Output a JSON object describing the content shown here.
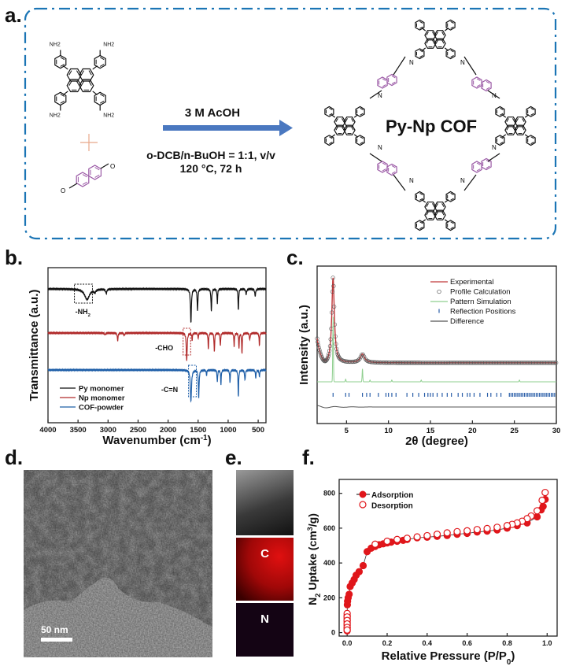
{
  "panels": {
    "a": "a.",
    "b": "b.",
    "c": "c.",
    "d": "d.",
    "e": "e.",
    "f": "f."
  },
  "scheme": {
    "reagent_label": "NH2",
    "conditions": {
      "catalyst": "3 M   AcOH",
      "solvent": "o-DCB/n-BuOH = 1:1, v/v",
      "temperature_time": "120 °C, 72 h"
    },
    "product": "Py-Np COF",
    "imine_label": "N",
    "colors": {
      "frame": "#1b75b5",
      "arrow": "#4a78c0",
      "naphthalene": "#9b5aa6",
      "plus": "#e8a88a",
      "bond": "#111111"
    }
  },
  "chart_data": [
    {
      "id": "ftir",
      "type": "line",
      "xlabel": "Wavenumber (cm",
      "xlabel_sup": "-1",
      "xlabel_end": ")",
      "ylabel": "Transmittance (a.u.)",
      "xlim": [
        4000,
        370
      ],
      "x_reversed": true,
      "xticks": [
        4000,
        3500,
        3000,
        2500,
        2000,
        1500,
        1000,
        500
      ],
      "series": [
        {
          "name": "Py monomer",
          "color": "#111111",
          "peaks": [
            [
              3350,
              0.3,
              80
            ],
            [
              3220,
              0.08,
              30
            ],
            [
              3030,
              0.12,
              20
            ],
            [
              1620,
              0.95,
              15
            ],
            [
              1510,
              0.62,
              12
            ],
            [
              1280,
              0.62,
              12
            ],
            [
              1180,
              0.42,
              10
            ],
            [
              830,
              0.62,
              10
            ],
            [
              700,
              0.15,
              15
            ],
            [
              550,
              0.2,
              15
            ]
          ]
        },
        {
          "name": "Np monomer",
          "color": "#b02a2a",
          "peaks": [
            [
              3050,
              0.05,
              15
            ],
            [
              2840,
              0.22,
              12
            ],
            [
              2730,
              0.08,
              12
            ],
            [
              1690,
              0.8,
              14
            ],
            [
              1600,
              0.2,
              10
            ],
            [
              1500,
              0.15,
              10
            ],
            [
              1330,
              0.45,
              10
            ],
            [
              1230,
              0.55,
              10
            ],
            [
              1130,
              0.38,
              10
            ],
            [
              900,
              0.38,
              10
            ],
            [
              820,
              0.42,
              10
            ],
            [
              770,
              0.58,
              10
            ],
            [
              640,
              0.2,
              12
            ],
            [
              480,
              0.35,
              10
            ]
          ]
        },
        {
          "name": "COF-powder",
          "color": "#1f5fa8",
          "peaks": [
            [
              1620,
              0.9,
              18
            ],
            [
              1490,
              0.8,
              12
            ],
            [
              1360,
              0.15,
              10
            ],
            [
              1180,
              0.35,
              10
            ],
            [
              1120,
              0.4,
              10
            ],
            [
              970,
              0.35,
              10
            ],
            [
              830,
              0.75,
              10
            ],
            [
              720,
              0.3,
              12
            ],
            [
              540,
              0.22,
              12
            ],
            [
              480,
              0.2,
              10
            ]
          ]
        }
      ],
      "annotations": [
        {
          "text": "-NH",
          "sub": "2",
          "range": [
            3560,
            3260
          ],
          "series": "Py monomer"
        },
        {
          "text": "-CHO",
          "range": [
            1750,
            1625
          ],
          "series": "Np monomer"
        },
        {
          "text": "-C=N",
          "range": [
            1660,
            1530
          ],
          "series": "COF-powder"
        }
      ],
      "legend": "bottom-left"
    },
    {
      "id": "pxrd",
      "type": "line",
      "xlabel": "2θ (degree)",
      "ylabel": "Intensity (a.u.)",
      "xlim": [
        1.5,
        30
      ],
      "xticks": [
        5,
        10,
        15,
        20,
        25,
        30
      ],
      "peaks": [
        [
          3.4,
          1.0,
          0.18
        ],
        [
          6.9,
          0.1,
          0.3
        ]
      ],
      "simulation_peaks": [
        [
          3.4,
          0.75
        ],
        [
          4.9,
          0.03
        ],
        [
          6.9,
          0.15
        ],
        [
          7.8,
          0.02
        ],
        [
          10.4,
          0.02
        ],
        [
          13.9,
          0.02
        ],
        [
          25.6,
          0.02
        ]
      ],
      "reflection_positions": [
        3.4,
        4.9,
        5.3,
        6.9,
        7.4,
        7.8,
        8.8,
        9.7,
        10.0,
        10.4,
        10.9,
        12.2,
        12.9,
        13.6,
        14.3,
        14.7,
        15.0,
        15.3,
        15.8,
        16.4,
        17.0,
        17.5,
        18.3,
        18.8,
        19.4,
        19.7,
        20.2,
        20.9,
        21.8,
        22.2,
        22.9,
        23.4,
        24.4,
        24.6,
        24.8,
        25.0,
        25.2,
        25.4,
        25.6,
        25.8,
        26.0,
        26.2,
        26.4,
        26.6,
        26.8,
        27.0,
        27.2,
        27.4,
        27.6,
        27.8,
        28.0,
        28.2,
        28.4,
        28.6,
        28.8,
        29.0,
        29.2,
        29.4,
        29.6,
        29.8
      ],
      "legend_items": [
        "Experimental",
        "Profile Calculation",
        "Pattern Simulation",
        "Reflection Positions",
        "Difference"
      ],
      "colors": {
        "experimental": "#c0393b",
        "profile": "#555555",
        "simulation": "#8fcf8f",
        "reflection": "#2a5ea8",
        "difference": "#555555"
      },
      "legend": "top-right"
    },
    {
      "id": "n2",
      "type": "scatter",
      "xlabel": "Relative Pressure (P/P",
      "xlabel_sub": "0",
      "xlabel_end": ")",
      "ylabel": "N",
      "ylabel_sub": "2",
      "ylabel_mid": " Uptake (cm",
      "ylabel_sup": "3",
      "ylabel_end": "/g)",
      "xlim": [
        -0.04,
        1.05
      ],
      "ylim": [
        -20,
        880
      ],
      "xticks": [
        "0.0",
        "0.2",
        "0.4",
        "0.6",
        "0.8",
        "1.0"
      ],
      "yticks": [
        "0",
        "200",
        "400",
        "600",
        "800"
      ],
      "series": [
        {
          "name": "Adsorption",
          "filled": true,
          "points": [
            [
              0,
              10
            ],
            [
              0,
              20
            ],
            [
              0,
              30
            ],
            [
              0,
              40
            ],
            [
              0,
              50
            ],
            [
              0,
              60
            ],
            [
              0,
              70
            ],
            [
              0,
              80
            ],
            [
              0,
              90
            ],
            [
              0,
              100
            ],
            [
              0.001,
              160
            ],
            [
              0.002,
              180
            ],
            [
              0.005,
              200
            ],
            [
              0.01,
              220
            ],
            [
              0.015,
              265
            ],
            [
              0.025,
              285
            ],
            [
              0.035,
              305
            ],
            [
              0.045,
              330
            ],
            [
              0.06,
              350
            ],
            [
              0.08,
              385
            ],
            [
              0.1,
              465
            ],
            [
              0.12,
              485
            ],
            [
              0.14,
              495
            ],
            [
              0.16,
              505
            ],
            [
              0.18,
              510
            ],
            [
              0.2,
              515
            ],
            [
              0.22,
              520
            ],
            [
              0.25,
              525
            ],
            [
              0.28,
              530
            ],
            [
              0.3,
              535
            ],
            [
              0.35,
              545
            ],
            [
              0.4,
              548
            ],
            [
              0.45,
              553
            ],
            [
              0.5,
              558
            ],
            [
              0.55,
              565
            ],
            [
              0.6,
              570
            ],
            [
              0.65,
              578
            ],
            [
              0.7,
              583
            ],
            [
              0.75,
              590
            ],
            [
              0.8,
              600
            ],
            [
              0.85,
              615
            ],
            [
              0.9,
              630
            ],
            [
              0.95,
              665
            ],
            [
              0.97,
              705
            ],
            [
              0.98,
              725
            ],
            [
              0.99,
              765
            ]
          ]
        },
        {
          "name": "Desorption",
          "filled": false,
          "points": [
            [
              0.99,
              805
            ],
            [
              0.975,
              760
            ],
            [
              0.95,
              700
            ],
            [
              0.92,
              670
            ],
            [
              0.9,
              655
            ],
            [
              0.875,
              640
            ],
            [
              0.85,
              630
            ],
            [
              0.825,
              622
            ],
            [
              0.8,
              615
            ],
            [
              0.75,
              605
            ],
            [
              0.7,
              598
            ],
            [
              0.65,
              592
            ],
            [
              0.6,
              585
            ],
            [
              0.55,
              580
            ],
            [
              0.5,
              573
            ],
            [
              0.45,
              565
            ],
            [
              0.4,
              557
            ],
            [
              0.35,
              550
            ],
            [
              0.3,
              542
            ],
            [
              0.25,
              535
            ],
            [
              0.2,
              525
            ],
            [
              0.14,
              508
            ],
            [
              0,
              110
            ],
            [
              0,
              90
            ],
            [
              0,
              70
            ],
            [
              0,
              50
            ],
            [
              0,
              30
            ],
            [
              0,
              15
            ]
          ]
        }
      ],
      "color": "#e0161b",
      "legend": "top-left"
    }
  ],
  "tem": {
    "scale_bar": "50 nm"
  },
  "eds": {
    "channels": [
      "",
      "C",
      "N"
    ]
  }
}
